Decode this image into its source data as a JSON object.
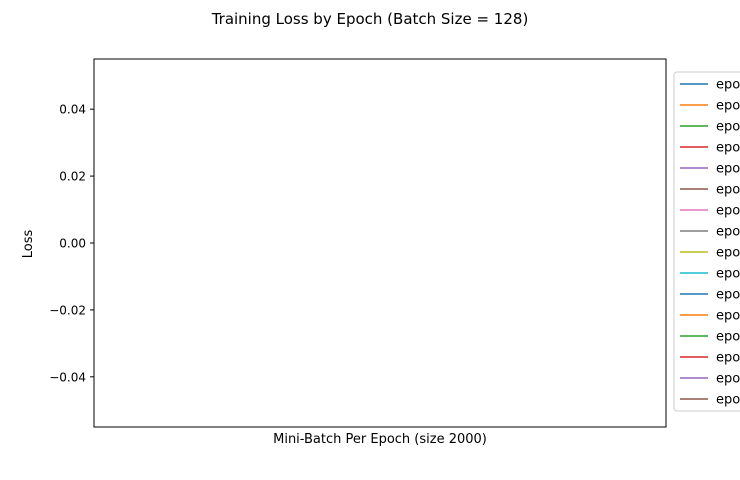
{
  "chart_data": {
    "type": "line",
    "title": "Training Loss by Epoch (Batch Size = 128)",
    "xlabel": "Mini-Batch Per Epoch (size 2000)",
    "ylabel": "Loss",
    "ylim": [
      -0.055,
      0.055
    ],
    "y_ticks": [
      0.04,
      0.02,
      0.0,
      -0.02,
      -0.04
    ],
    "y_tick_labels": [
      "0.04",
      "0.02",
      "0.00",
      "−0.02",
      "−0.04"
    ],
    "x_ticks": [],
    "grid": false,
    "legend_placement": "outside-right",
    "legend_entries": [
      "epoc",
      "epoc",
      "epoc",
      "epoc",
      "epoc",
      "epoc",
      "epoc",
      "epoc",
      "epoc",
      "epoc",
      "epoc",
      "epoc",
      "epoc",
      "epoc",
      "epoc",
      "epoc"
    ],
    "series_colors": [
      "#1f77b4",
      "#ff7f0e",
      "#2ca02c",
      "#d62728",
      "#9467bd",
      "#8c564b",
      "#e377c2",
      "#7f7f7f",
      "#bcbd22",
      "#17becf",
      "#1f77b4",
      "#ff7f0e",
      "#2ca02c",
      "#d62728",
      "#9467bd",
      "#8c564b"
    ],
    "series": []
  }
}
